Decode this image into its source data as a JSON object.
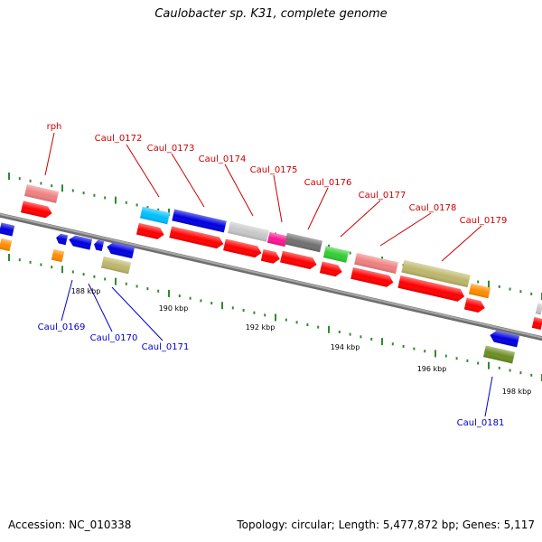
{
  "title": "Caulobacter sp. K31, complete genome",
  "footer": {
    "accession": "Accession: NC_010338",
    "topology": "Topology: circular; Length: 5,477,872 bp; Genes: 5,117"
  },
  "colors": {
    "forward_label": "#cc0000",
    "reverse_label": "#0000cc",
    "backbone": "#8c8c8c",
    "tick": "#2e8b2e"
  },
  "scale_labels": [
    "188 kbp",
    "190 kbp",
    "192 kbp",
    "194 kbp",
    "196 kbp",
    "198 kbp"
  ],
  "forward_gene_labels": [
    "rph",
    "Caul_0172",
    "Caul_0173",
    "Caul_0174",
    "Caul_0175",
    "Caul_0176",
    "Caul_0177",
    "Caul_0178",
    "Caul_0179"
  ],
  "reverse_gene_labels": [
    "Caul_0169",
    "Caul_0170",
    "Caul_0171",
    "Caul_0181"
  ]
}
